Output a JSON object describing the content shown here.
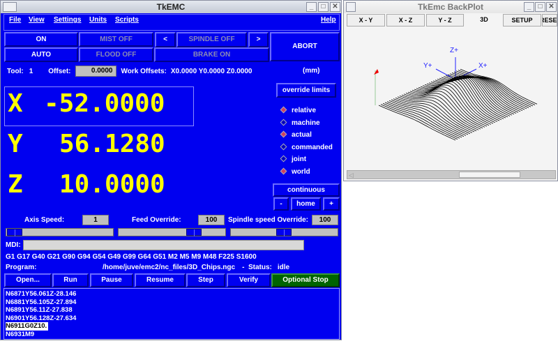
{
  "main_window": {
    "title": "TkEMC",
    "menu": [
      "File",
      "View",
      "Settings",
      "Units",
      "Scripts",
      "Help"
    ],
    "buttons": {
      "on": "ON",
      "mist": "MIST OFF",
      "spindle_dec": "<",
      "spindle": "SPINDLE OFF",
      "spindle_inc": ">",
      "abort": "ABORT",
      "auto": "AUTO",
      "flood": "FLOOD OFF",
      "brake": "BRAKE ON"
    },
    "tool_label": "Tool:",
    "tool": "1",
    "offset_label": "Offset:",
    "offset": "0.0000",
    "work_offsets_label": "Work Offsets:",
    "work_offsets": "X0.0000 Y0.0000 Z0.0000",
    "units": "(mm)",
    "coords": [
      {
        "axis": "X",
        "value": "-52.0000"
      },
      {
        "axis": "Y",
        "value": "56.1280"
      },
      {
        "axis": "Z",
        "value": "10.0000"
      }
    ],
    "override_limits": "override limits",
    "radios": [
      {
        "label": "relative",
        "selected": true
      },
      {
        "label": "machine",
        "selected": false
      },
      {
        "label": "actual",
        "selected": true
      },
      {
        "label": "commanded",
        "selected": false
      },
      {
        "label": "joint",
        "selected": false
      },
      {
        "label": "world",
        "selected": true
      }
    ],
    "jog_mode": "continuous",
    "jog_minus": "-",
    "home": "home",
    "jog_plus": "+",
    "axis_speed_label": "Axis Speed:",
    "axis_speed": "1",
    "feed_override_label": "Feed Override:",
    "feed_override": "100",
    "spindle_override_label": "Spindle speed Override:",
    "spindle_override": "100",
    "sliders": {
      "axis_speed": 0.0,
      "feed_override": 0.75,
      "spindle_override": 0.5
    },
    "mdi_label": "MDI:",
    "mdi_value": "",
    "gcodes": "G1 G17 G40 G21 G90 G94 G54 G49 G99 G64 G51 M2 M5 M9 M48 F225 S1600",
    "program_label": "Program:",
    "program": "/home/juve/emc2/nc_files/3D_Chips.ngc",
    "status_label": "-  Status:",
    "status": "idle",
    "actions": [
      "Open...",
      "Run",
      "Pause",
      "Resume",
      "Step",
      "Verify",
      "Optional Stop"
    ],
    "listing": [
      "N6871Y56.061Z-28.146",
      "N6881Y56.105Z-27.894",
      "N6891Y56.11Z-27.838",
      "N6901Y56.128Z-27.634",
      "N6911G0Z10.",
      "N6931M9"
    ],
    "listing_current": 4,
    "colors": {
      "background": "#0000f0",
      "coord_text": "#ffff00",
      "optional_stop": "#006400"
    }
  },
  "backplot_window": {
    "title": "TkEmc BackPlot",
    "tabs": [
      "X - Y",
      "X - Z",
      "Y - Z",
      "3D",
      "SETUP",
      "RESET"
    ],
    "active_tab": "3D",
    "axis_labels": [
      "Z+",
      "Y+",
      "X+"
    ]
  }
}
